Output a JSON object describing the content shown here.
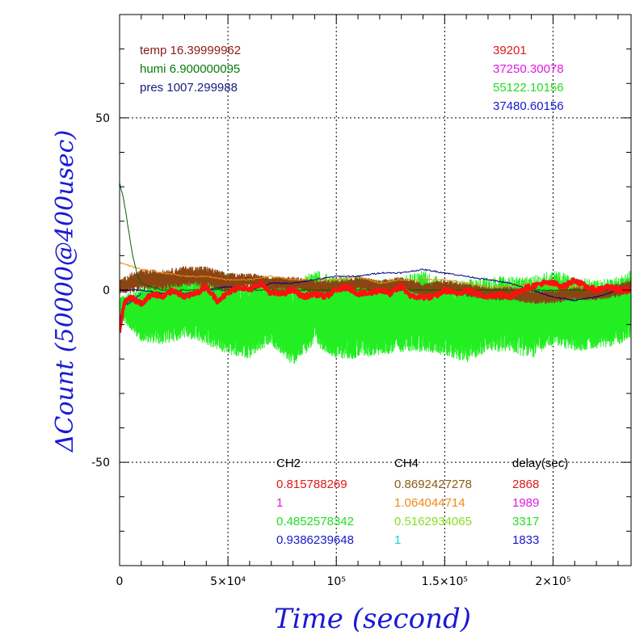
{
  "chart_data": {
    "type": "line",
    "xlabel": "Time (second)",
    "ylabel": "ΔCount (50000@400usec)",
    "xlim": [
      0,
      236000
    ],
    "ylim": [
      -80,
      80
    ],
    "grid": true,
    "x_ticks": [
      {
        "value": 0,
        "label": "0"
      },
      {
        "value": 50000,
        "label": "5×10⁴"
      },
      {
        "value": 100000,
        "label": "10⁵"
      },
      {
        "value": 150000,
        "label": "1.5×10⁵"
      },
      {
        "value": 200000,
        "label": "2×10⁵"
      }
    ],
    "y_ticks": [
      {
        "value": -50,
        "label": "-50"
      },
      {
        "value": 0,
        "label": "0"
      },
      {
        "value": 50,
        "label": "50"
      }
    ],
    "env": [
      {
        "text": "temp 16.39999962",
        "color": "#8b1a1a"
      },
      {
        "text": "humi 6.900000095",
        "color": "#0a7a0a"
      },
      {
        "text": "pres 1007.299988",
        "color": "#1a1a80"
      }
    ],
    "base_counts": [
      {
        "text": "39201",
        "color": "#e01818"
      },
      {
        "text": "37250.30078",
        "color": "#e018e0"
      },
      {
        "text": "55122.10156",
        "color": "#22dd22"
      },
      {
        "text": "37480.60156",
        "color": "#1818d0"
      }
    ],
    "table": {
      "headers": [
        "CH2",
        "CH4",
        "delay(sec)"
      ],
      "rows": [
        [
          {
            "text": "0.815788269",
            "color": "#e01818"
          },
          {
            "text": "0.8692427278",
            "color": "#8b5a14"
          },
          {
            "text": "2868",
            "color": "#e01818"
          }
        ],
        [
          {
            "text": "1",
            "color": "#e018e0"
          },
          {
            "text": "1.064044714",
            "color": "#f08a14"
          },
          {
            "text": "1989",
            "color": "#e018e0"
          }
        ],
        [
          {
            "text": "0.4852578342",
            "color": "#22dd22"
          },
          {
            "text": "0.5162934065",
            "color": "#88dd22"
          },
          {
            "text": "3317",
            "color": "#22dd22"
          }
        ],
        [
          {
            "text": "0.9386239648",
            "color": "#1818d0"
          },
          {
            "text": "1",
            "color": "#18d0d0"
          },
          {
            "text": "1833",
            "color": "#1818d0"
          }
        ]
      ]
    },
    "series": [
      {
        "color": "#22ee22",
        "kind": "noisy",
        "x": [
          0,
          10000,
          20000,
          30000,
          40000,
          50000,
          60000,
          70000,
          80000,
          90000,
          100000,
          110000,
          120000,
          130000,
          140000,
          150000,
          160000,
          170000,
          180000,
          190000,
          200000,
          210000,
          220000,
          230000,
          236000
        ],
        "y": [
          -5,
          -7,
          -6,
          -5,
          -6,
          -7,
          -9,
          -6,
          -10,
          -5,
          -8,
          -8,
          -8,
          -7,
          -6,
          -8,
          -9,
          -7,
          -7,
          -8,
          -5,
          -7,
          -7,
          -6,
          -4
        ],
        "amp": [
          3,
          8,
          10,
          9,
          10,
          12,
          11,
          10,
          12,
          11,
          12,
          12,
          11,
          11,
          12,
          11,
          12,
          11,
          11,
          12,
          11,
          11,
          10,
          10,
          10
        ]
      },
      {
        "color": "#8b4513",
        "kind": "band",
        "x": [
          0,
          5000,
          10000,
          20000,
          30000,
          40000,
          50000,
          60000,
          70000,
          80000,
          90000,
          100000,
          110000,
          120000,
          130000,
          140000,
          150000,
          160000,
          170000,
          180000,
          190000,
          200000,
          210000,
          220000,
          230000,
          236000
        ],
        "y": [
          1,
          2,
          3,
          3,
          4,
          4,
          2,
          3,
          2,
          2,
          1,
          1,
          2,
          1,
          2,
          0,
          1,
          0,
          -1,
          -1,
          -2,
          -2,
          -1,
          -1,
          0,
          1
        ],
        "amp": [
          2,
          3,
          3,
          3,
          3,
          3,
          3,
          2,
          2,
          2,
          2,
          2,
          2,
          2,
          2,
          2,
          2,
          2,
          2,
          2,
          2,
          2,
          2,
          2,
          2,
          2
        ]
      },
      {
        "color": "#f08a14",
        "kind": "line",
        "x": [
          0,
          5000,
          10000,
          20000,
          30000,
          40000,
          50000,
          60000,
          70000,
          80000,
          90000,
          100000,
          110000,
          120000,
          130000,
          140000,
          150000,
          160000,
          170000,
          180000,
          190000,
          200000,
          210000,
          220000,
          230000,
          236000
        ],
        "y": [
          8,
          7,
          6,
          5,
          4,
          4,
          3,
          3,
          4,
          3,
          3,
          3,
          4,
          2,
          3,
          3,
          3,
          2,
          1,
          1,
          2,
          1,
          1,
          1,
          0,
          0
        ]
      },
      {
        "color": "#000080",
        "kind": "line",
        "x": [
          0,
          10000,
          20000,
          30000,
          40000,
          50000,
          60000,
          70000,
          80000,
          90000,
          100000,
          110000,
          120000,
          130000,
          140000,
          150000,
          160000,
          170000,
          180000,
          190000,
          200000,
          210000,
          220000,
          230000,
          236000
        ],
        "y": [
          0,
          0,
          -1,
          -1,
          0,
          1,
          0,
          2,
          2,
          3,
          4,
          4,
          5,
          5,
          6,
          5,
          4,
          3,
          2,
          0,
          -2,
          -3,
          -2,
          0,
          0
        ]
      },
      {
        "color": "#006400",
        "kind": "line",
        "x": [
          0,
          2000,
          4000,
          6000,
          8000,
          10000,
          14000,
          20000,
          30000,
          40000,
          60000,
          80000,
          100000,
          120000,
          140000,
          160000,
          180000,
          200000,
          220000,
          236000
        ],
        "y": [
          31,
          26,
          18,
          10,
          5,
          2,
          1,
          0,
          0,
          0,
          0,
          0,
          0,
          0,
          0,
          0,
          0,
          0,
          0,
          0
        ]
      },
      {
        "color": "#1818d0",
        "kind": "line",
        "x": [
          0,
          1000,
          2000,
          3000,
          4000,
          6000,
          8000,
          10000
        ],
        "y": [
          -9,
          -6,
          -5,
          -4,
          -4,
          -3,
          -2,
          -1
        ]
      },
      {
        "color": "#ff1010",
        "kind": "thick",
        "x": [
          0,
          2000,
          5000,
          10000,
          15000,
          20000,
          25000,
          30000,
          35000,
          40000,
          45000,
          50000,
          55000,
          60000,
          65000,
          70000,
          75000,
          80000,
          85000,
          90000,
          95000,
          100000,
          105000,
          110000,
          115000,
          120000,
          125000,
          130000,
          135000,
          140000,
          145000,
          150000,
          155000,
          160000,
          165000,
          170000,
          175000,
          180000,
          185000,
          190000,
          195000,
          200000,
          205000,
          210000,
          215000,
          220000,
          225000,
          230000,
          236000
        ],
        "y": [
          -12,
          -4,
          -2,
          -4,
          -1,
          -2,
          0,
          -2,
          -1,
          1,
          -3,
          -1,
          1,
          0,
          2,
          -1,
          -1,
          0,
          -2,
          -1,
          -2,
          0,
          1,
          -1,
          -1,
          0,
          -1,
          1,
          -2,
          -2,
          -2,
          0,
          -1,
          0,
          -1,
          -2,
          -1,
          -2,
          0,
          1,
          2,
          2,
          1,
          3,
          1,
          0,
          1,
          0,
          0
        ]
      }
    ]
  }
}
